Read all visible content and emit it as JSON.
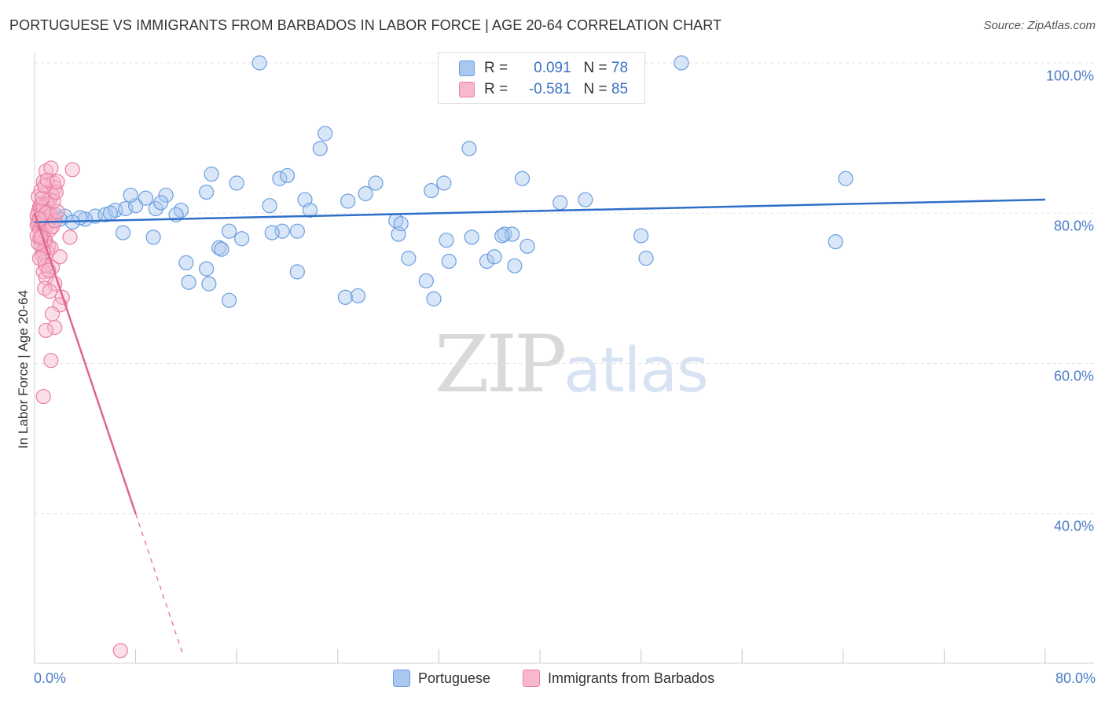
{
  "title": "PORTUGUESE VS IMMIGRANTS FROM BARBADOS IN LABOR FORCE | AGE 20-64 CORRELATION CHART",
  "source": "Source: ZipAtlas.com",
  "watermark": {
    "zip": "ZIP",
    "atlas": "atlas"
  },
  "legend": {
    "r_label": "R =",
    "n_label": "N =",
    "series": [
      {
        "name": "Portuguese",
        "r": "0.091",
        "n": "78"
      },
      {
        "name": "Immigrants from Barbados",
        "r": "-0.581",
        "n": "85"
      }
    ]
  },
  "colors": {
    "portuguese_fill": "#a9c8f0",
    "portuguese_stroke": "#6b9ee0",
    "portuguese_line": "#2f6fc8",
    "barbados_fill": "#f7b8cc",
    "barbados_stroke": "#ea7fa2",
    "barbados_line": "#e0658f",
    "axis_text": "#4a7cc9",
    "grid": "#e3e3e3"
  },
  "chart_data": {
    "type": "scatter",
    "title": "PORTUGUESE VS IMMIGRANTS FROM BARBADOS IN LABOR FORCE | AGE 20-64 CORRELATION CHART",
    "xlabel": "",
    "ylabel": "In Labor Force | Age 20-64",
    "xlim": [
      0,
      80
    ],
    "ylim": [
      20,
      100
    ],
    "x_tick_labels": [
      {
        "value": 0,
        "label": "0.0%"
      },
      {
        "value": 80,
        "label": "80.0%"
      }
    ],
    "y_tick_labels": [
      {
        "value": 100,
        "label": "100.0%"
      },
      {
        "value": 80,
        "label": "80.0%"
      },
      {
        "value": 60,
        "label": "60.0%"
      },
      {
        "value": 40,
        "label": "40.0%"
      }
    ],
    "x_minor_ticks": [
      0,
      8,
      16,
      24,
      32,
      40,
      48,
      56,
      64,
      72,
      80
    ],
    "grid": true,
    "legend_position": "top-center",
    "series": [
      {
        "name": "Portuguese",
        "trend": {
          "x": [
            0,
            80
          ],
          "y": [
            78.8,
            81.8
          ],
          "dashed_from": null
        },
        "points": [
          [
            1.6,
            79.8
          ],
          [
            2.4,
            79.6
          ],
          [
            4.8,
            79.6
          ],
          [
            2.0,
            79.2
          ],
          [
            4.0,
            79.2
          ],
          [
            3.6,
            79.4
          ],
          [
            5.6,
            79.8
          ],
          [
            6.4,
            80.4
          ],
          [
            7.2,
            80.6
          ],
          [
            8.0,
            81.0
          ],
          [
            7.6,
            82.4
          ],
          [
            8.8,
            82.0
          ],
          [
            10.4,
            82.4
          ],
          [
            9.6,
            80.6
          ],
          [
            11.6,
            80.4
          ],
          [
            11.2,
            79.8
          ],
          [
            13.6,
            82.8
          ],
          [
            7.0,
            77.4
          ],
          [
            9.4,
            76.8
          ],
          [
            12.0,
            73.4
          ],
          [
            13.6,
            72.6
          ],
          [
            12.2,
            70.8
          ],
          [
            13.8,
            70.6
          ],
          [
            14.0,
            85.2
          ],
          [
            16.0,
            84.0
          ],
          [
            15.4,
            77.6
          ],
          [
            16.4,
            76.6
          ],
          [
            14.6,
            75.4
          ],
          [
            14.8,
            75.2
          ],
          [
            15.4,
            68.4
          ],
          [
            18.6,
            81.0
          ],
          [
            19.6,
            77.6
          ],
          [
            18.8,
            77.4
          ],
          [
            19.4,
            84.6
          ],
          [
            20.0,
            85.0
          ],
          [
            21.4,
            81.8
          ],
          [
            21.8,
            80.4
          ],
          [
            20.8,
            72.2
          ],
          [
            22.6,
            88.6
          ],
          [
            23.0,
            90.6
          ],
          [
            24.8,
            81.6
          ],
          [
            26.2,
            82.6
          ],
          [
            27.0,
            84.0
          ],
          [
            28.6,
            79.0
          ],
          [
            28.8,
            77.2
          ],
          [
            29.0,
            78.6
          ],
          [
            24.6,
            68.8
          ],
          [
            25.6,
            69.0
          ],
          [
            29.6,
            74.0
          ],
          [
            31.4,
            83.0
          ],
          [
            32.4,
            84.0
          ],
          [
            32.6,
            76.4
          ],
          [
            32.8,
            73.6
          ],
          [
            31.0,
            71.0
          ],
          [
            31.6,
            68.6
          ],
          [
            34.4,
            88.6
          ],
          [
            34.6,
            76.8
          ],
          [
            35.8,
            73.6
          ],
          [
            36.4,
            74.2
          ],
          [
            37.2,
            77.2
          ],
          [
            37.8,
            77.2
          ],
          [
            38.0,
            73.0
          ],
          [
            38.6,
            84.6
          ],
          [
            39.0,
            75.6
          ],
          [
            41.6,
            81.4
          ],
          [
            43.6,
            81.8
          ],
          [
            48.0,
            77.0
          ],
          [
            48.4,
            74.0
          ],
          [
            64.2,
            84.6
          ],
          [
            63.4,
            76.2
          ],
          [
            17.8,
            100.0
          ],
          [
            51.2,
            100.0
          ],
          [
            6.0,
            80.0
          ],
          [
            10.0,
            81.4
          ],
          [
            3.0,
            78.8
          ],
          [
            1.2,
            79.0
          ],
          [
            20.8,
            77.6
          ],
          [
            37.0,
            77.0
          ]
        ]
      },
      {
        "name": "Immigrants from Barbados",
        "trend": {
          "x": [
            0,
            8.0
          ],
          "y": [
            80.0,
            40.0
          ],
          "dashed_to": {
            "x": 11.8,
            "y": 21.0
          }
        },
        "points": [
          [
            0.3,
            80.2
          ],
          [
            0.5,
            79.8
          ],
          [
            0.4,
            79.4
          ],
          [
            0.6,
            79.0
          ],
          [
            0.3,
            78.6
          ],
          [
            0.7,
            78.2
          ],
          [
            0.5,
            78.0
          ],
          [
            0.8,
            80.6
          ],
          [
            1.0,
            80.0
          ],
          [
            0.9,
            79.2
          ],
          [
            1.1,
            78.8
          ],
          [
            1.2,
            79.6
          ],
          [
            0.4,
            80.8
          ],
          [
            0.6,
            81.4
          ],
          [
            0.3,
            82.2
          ],
          [
            0.5,
            83.0
          ],
          [
            0.7,
            84.2
          ],
          [
            0.9,
            85.6
          ],
          [
            1.3,
            86.0
          ],
          [
            1.5,
            84.0
          ],
          [
            1.6,
            83.4
          ],
          [
            1.4,
            82.4
          ],
          [
            1.2,
            81.8
          ],
          [
            1.0,
            81.2
          ],
          [
            0.8,
            77.6
          ],
          [
            0.6,
            77.2
          ],
          [
            0.4,
            76.6
          ],
          [
            0.9,
            76.2
          ],
          [
            1.1,
            75.6
          ],
          [
            0.7,
            75.2
          ],
          [
            1.0,
            74.8
          ],
          [
            1.3,
            75.4
          ],
          [
            0.6,
            74.4
          ],
          [
            0.8,
            73.6
          ],
          [
            1.4,
            72.8
          ],
          [
            0.7,
            72.2
          ],
          [
            0.9,
            71.4
          ],
          [
            1.6,
            70.6
          ],
          [
            0.8,
            70.0
          ],
          [
            1.2,
            69.6
          ],
          [
            2.2,
            68.8
          ],
          [
            2.0,
            67.8
          ],
          [
            1.4,
            66.6
          ],
          [
            1.6,
            64.8
          ],
          [
            0.9,
            64.4
          ],
          [
            1.3,
            60.4
          ],
          [
            0.7,
            55.6
          ],
          [
            3.0,
            85.8
          ],
          [
            2.8,
            76.8
          ],
          [
            2.0,
            74.2
          ],
          [
            0.2,
            79.6
          ],
          [
            0.3,
            79.0
          ],
          [
            0.5,
            80.4
          ],
          [
            0.2,
            78.4
          ],
          [
            0.4,
            77.8
          ],
          [
            0.6,
            78.8
          ],
          [
            0.8,
            79.4
          ],
          [
            1.0,
            78.4
          ],
          [
            0.5,
            81.0
          ],
          [
            0.7,
            80.8
          ],
          [
            1.1,
            80.2
          ],
          [
            1.3,
            79.8
          ],
          [
            0.9,
            80.0
          ],
          [
            0.4,
            79.2
          ],
          [
            0.6,
            77.0
          ],
          [
            0.8,
            76.4
          ],
          [
            1.2,
            77.8
          ],
          [
            1.4,
            78.2
          ],
          [
            1.6,
            79.0
          ],
          [
            1.8,
            80.2
          ],
          [
            0.5,
            75.8
          ],
          [
            0.7,
            74.8
          ],
          [
            0.9,
            73.0
          ],
          [
            1.1,
            72.4
          ],
          [
            0.3,
            76.0
          ],
          [
            0.4,
            74.0
          ],
          [
            1.5,
            81.6
          ],
          [
            1.7,
            82.8
          ],
          [
            0.6,
            82.0
          ],
          [
            0.8,
            83.6
          ],
          [
            1.0,
            84.4
          ],
          [
            1.8,
            84.2
          ],
          [
            0.2,
            77.0
          ],
          [
            0.5,
            76.8
          ],
          [
            6.8,
            21.8
          ]
        ]
      }
    ]
  }
}
